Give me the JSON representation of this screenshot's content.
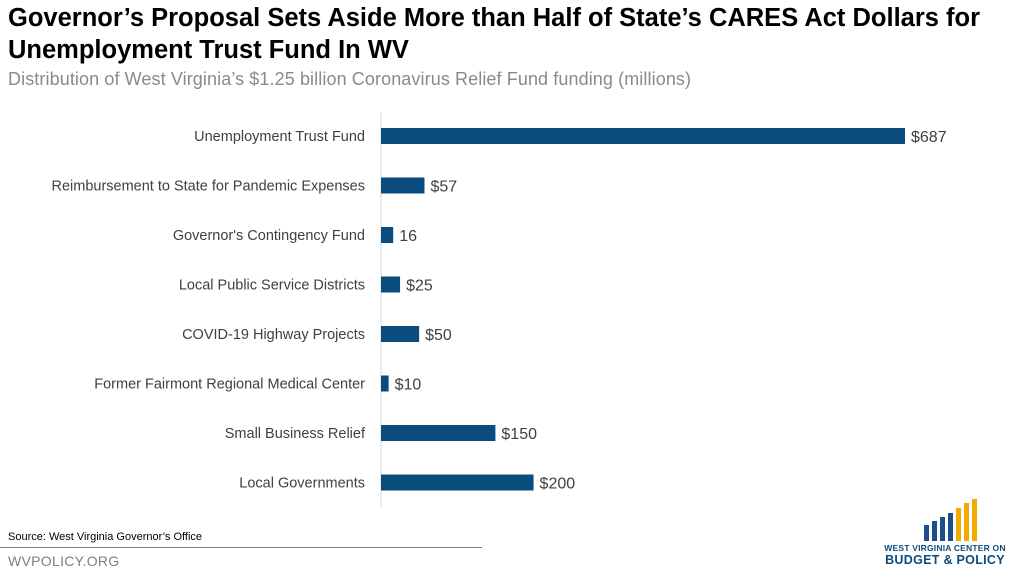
{
  "header": {
    "title": "Governor’s Proposal Sets Aside More than Half of State’s CARES Act Dollars for Unemployment Trust Fund In WV",
    "subtitle": "Distribution of West Virginia’s $1.25 billion Coronavirus Relief Fund funding (millions)"
  },
  "footer": {
    "source": "Source: West Virginia Governor’s Office",
    "site": "WVPOLICY.ORG"
  },
  "logo": {
    "line1": "WEST VIRGINIA CENTER ON",
    "line2": "BUDGET & POLICY",
    "colors": {
      "navy": "#1d4e89",
      "gold": "#f2a900"
    }
  },
  "chart_data": {
    "type": "bar",
    "orientation": "horizontal",
    "title": "Distribution of West Virginia’s $1.25 billion Coronavirus Relief Fund funding (millions)",
    "categories": [
      "Unemployment Trust Fund",
      "Reimbursement to State for Pandemic Expenses",
      "Governor's Contingency Fund",
      "Local Public Service Districts",
      "COVID-19 Highway Projects",
      "Former Fairmont Regional Medical Center",
      "Small Business Relief",
      "Local Governments"
    ],
    "values": [
      687,
      57,
      16,
      25,
      50,
      10,
      150,
      200
    ],
    "data_labels": [
      "$687",
      "$57",
      "16",
      "$25",
      "$50",
      "$10",
      "$150",
      "$200"
    ],
    "xlim": [
      0,
      700
    ],
    "bar_color": "#0b4c7f",
    "grid": false,
    "legend": "none"
  }
}
